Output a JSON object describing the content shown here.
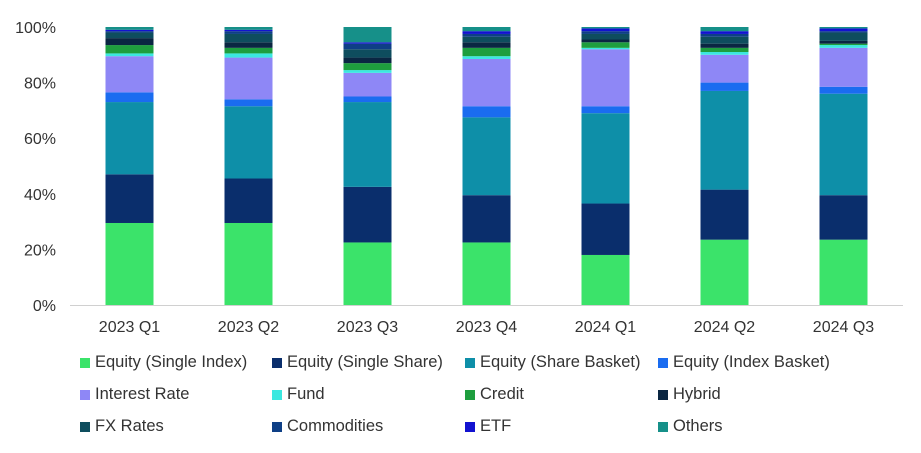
{
  "chart_data": {
    "type": "bar",
    "stacked": true,
    "categories": [
      "2023 Q1",
      "2023 Q2",
      "2023 Q3",
      "2023 Q4",
      "2024 Q1",
      "2024 Q2",
      "2024 Q3"
    ],
    "ylim": [
      0,
      100
    ],
    "yticks": [
      "0%",
      "20%",
      "40%",
      "60%",
      "80%",
      "100%"
    ],
    "grid": false,
    "legend_position": "bottom",
    "series": [
      {
        "name": "Equity (Single Index)",
        "color": "#3BE36A",
        "values": [
          29.5,
          29.5,
          22.5,
          22.5,
          18.0,
          23.5,
          23.5
        ]
      },
      {
        "name": "Equity (Single Share)",
        "color": "#0A2E6C",
        "values": [
          17.5,
          16.0,
          20.0,
          17.0,
          18.5,
          18.0,
          16.0
        ]
      },
      {
        "name": "Equity (Share Basket)",
        "color": "#0E8FA8",
        "values": [
          26.0,
          26.0,
          30.5,
          28.0,
          32.5,
          35.5,
          36.5
        ]
      },
      {
        "name": "Equity (Index Basket)",
        "color": "#1A6CF0",
        "values": [
          3.5,
          2.5,
          2.0,
          4.0,
          2.5,
          3.0,
          2.5
        ]
      },
      {
        "name": "Interest Rate",
        "color": "#8E87F6",
        "values": [
          13.0,
          15.0,
          8.5,
          17.0,
          20.5,
          10.0,
          14.0
        ]
      },
      {
        "name": "Fund",
        "color": "#3BE8E0",
        "values": [
          1.0,
          1.5,
          1.0,
          1.0,
          0.5,
          1.0,
          1.0
        ]
      },
      {
        "name": "Credit",
        "color": "#1E9E3E",
        "values": [
          3.0,
          2.0,
          2.5,
          3.0,
          2.0,
          1.5,
          0.5
        ]
      },
      {
        "name": "Hybrid",
        "color": "#0A2642",
        "values": [
          2.5,
          2.0,
          2.0,
          2.0,
          1.0,
          1.5,
          1.0
        ]
      },
      {
        "name": "FX Rates",
        "color": "#0E4D5E",
        "values": [
          2.0,
          3.0,
          3.0,
          2.0,
          2.0,
          2.5,
          3.0
        ]
      },
      {
        "name": "Commodities",
        "color": "#0E3F86",
        "values": [
          0.5,
          1.0,
          2.0,
          1.0,
          1.0,
          1.0,
          0.5
        ]
      },
      {
        "name": "ETF",
        "color": "#1212D0",
        "values": [
          0.5,
          0.5,
          0.5,
          1.0,
          1.0,
          1.0,
          1.0
        ]
      },
      {
        "name": "Others",
        "color": "#169089",
        "values": [
          1.0,
          1.0,
          5.5,
          1.5,
          0.5,
          1.5,
          0.5
        ]
      }
    ]
  }
}
